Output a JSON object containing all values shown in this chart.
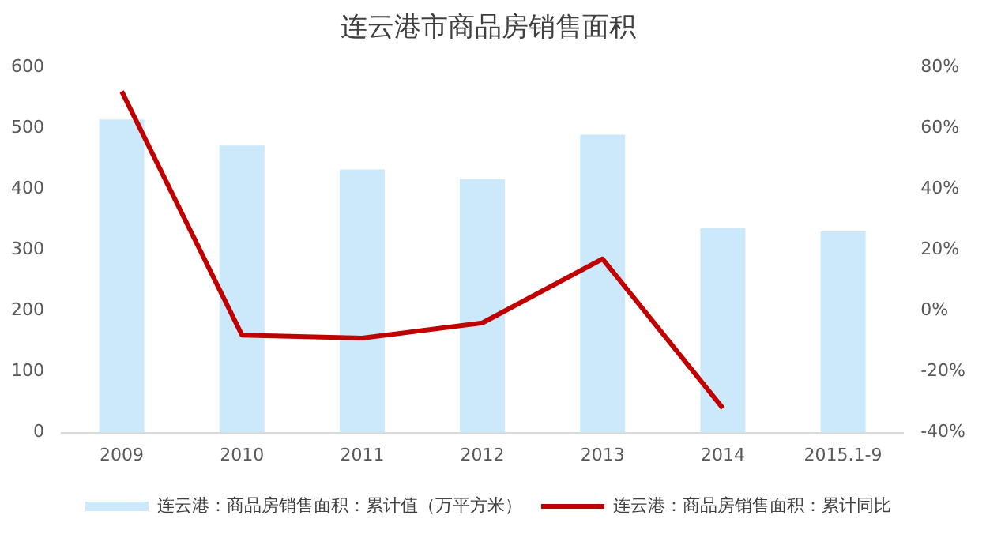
{
  "chart_data": {
    "type": "bar",
    "title": "连云港市商品房销售面积",
    "categories": [
      "2009",
      "2010",
      "2011",
      "2012",
      "2013",
      "2014",
      "2015.1-9"
    ],
    "series": [
      {
        "name": "连云港：商品房销售面积：累计值（万平方米）",
        "color": "#cce9fb",
        "values": [
          514,
          471,
          432,
          416,
          489,
          336,
          330
        ]
      },
      {
        "name": "连云港：商品房销售面积：累计同比",
        "type": "line",
        "axis": "y2",
        "color": "#c00000",
        "values": [
          72,
          -8,
          -9,
          -4,
          17,
          -32,
          null
        ]
      }
    ],
    "ylim": [
      0,
      600
    ],
    "yticks": [
      0,
      100,
      200,
      300,
      400,
      500,
      600
    ],
    "y2lim": [
      -40,
      80
    ],
    "y2ticks": [
      {
        "value": -40,
        "label": "-40%"
      },
      {
        "value": -20,
        "label": "-20%"
      },
      {
        "value": 0,
        "label": "0%"
      },
      {
        "value": 20,
        "label": "20%"
      },
      {
        "value": 40,
        "label": "40%"
      },
      {
        "value": 60,
        "label": "60%"
      },
      {
        "value": 80,
        "label": "80%"
      }
    ],
    "grid": false,
    "legend": "bottom",
    "marker": "none",
    "line_style": "solid"
  }
}
